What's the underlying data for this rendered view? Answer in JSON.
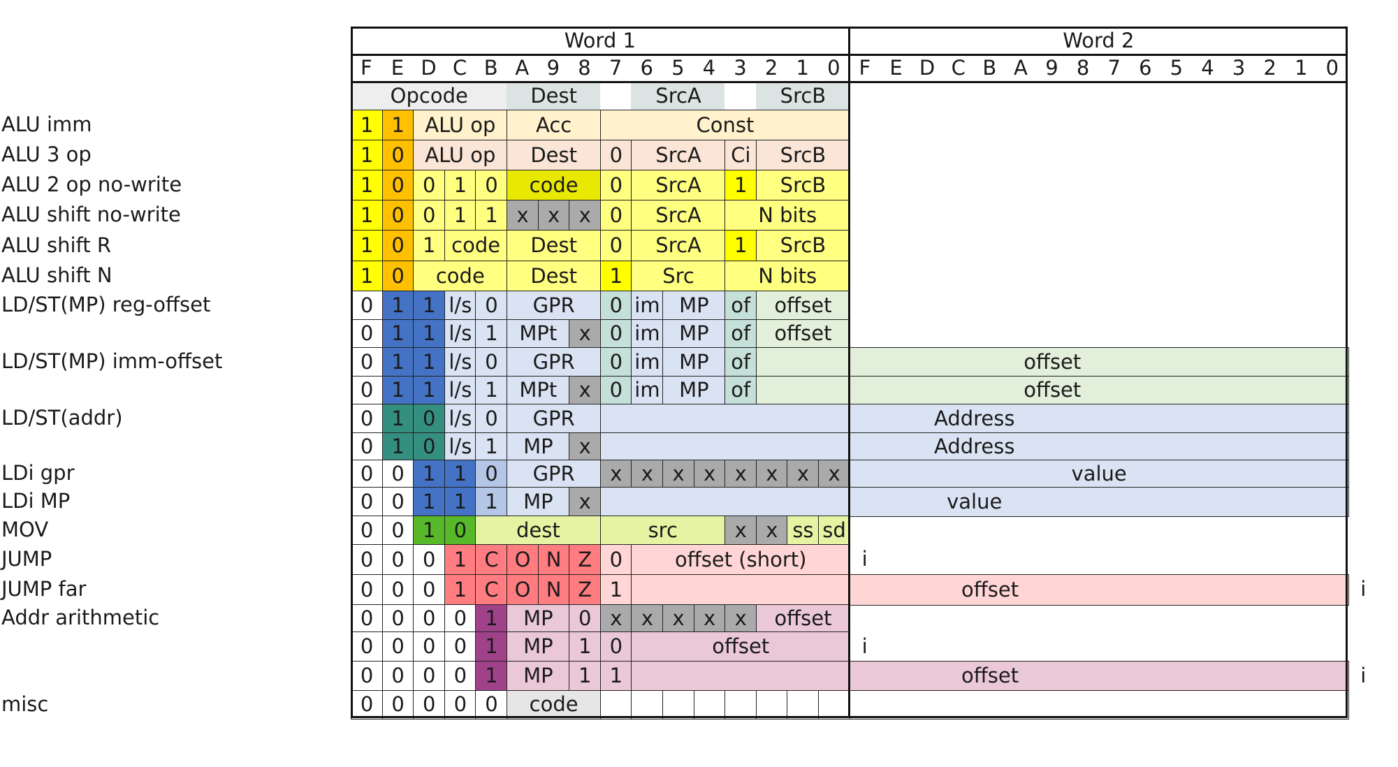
{
  "headers": {
    "word1": "Word 1",
    "word2": "Word 2",
    "bits": [
      "F",
      "E",
      "D",
      "C",
      "B",
      "A",
      "9",
      "8",
      "7",
      "6",
      "5",
      "4",
      "3",
      "2",
      "1",
      "0"
    ]
  },
  "colors": {
    "Y": "#ffff80",
    "Yd": "#ffff00",
    "O": "#ffc000",
    "CR": "#fff2cc",
    "PE": "#fbe5d6",
    "OL": "#e8e800",
    "G": "#aaaaaa",
    "GL": "#e6e6e6",
    "W": "#ffffff",
    "B": "#4472c4",
    "BL": "#dae3f3",
    "BM": "#b4c7e7",
    "T": "#358f80",
    "TL": "#c5dfd9",
    "GRN": "#57b929",
    "LG": "#e2efda",
    "LIM": "#e6f3a3",
    "R": "#ff7c80",
    "RL": "#ffd5d5",
    "P": "#a0428a",
    "PL": "#ebc8d8",
    "HD": "#eeeeee",
    "HDT": "#dbe4e2"
  },
  "rows": [
    {
      "label": "",
      "cells": [
        [
          0,
          5,
          "Opcode",
          "HD"
        ],
        [
          5,
          3,
          "Dest",
          "HDT"
        ],
        [
          8,
          1,
          "",
          "W"
        ],
        [
          9,
          3,
          "SrcA",
          "HDT"
        ],
        [
          12,
          1,
          "",
          "W"
        ],
        [
          13,
          3,
          "SrcB",
          "HDT"
        ]
      ]
    },
    {
      "label": "ALU imm",
      "cells": [
        [
          0,
          1,
          "1",
          "Yd"
        ],
        [
          1,
          1,
          "1",
          "O"
        ],
        [
          2,
          3,
          "ALU op",
          "CR"
        ],
        [
          5,
          3,
          "Acc",
          "CR"
        ],
        [
          8,
          8,
          "Const",
          "CR"
        ]
      ]
    },
    {
      "label": "ALU 3 op",
      "cells": [
        [
          0,
          1,
          "1",
          "Yd"
        ],
        [
          1,
          1,
          "0",
          "O"
        ],
        [
          2,
          3,
          "ALU op",
          "PE"
        ],
        [
          5,
          3,
          "Dest",
          "PE"
        ],
        [
          8,
          1,
          "0",
          "PE"
        ],
        [
          9,
          3,
          "SrcA",
          "PE"
        ],
        [
          12,
          1,
          "Ci",
          "PE"
        ],
        [
          13,
          3,
          "SrcB",
          "PE"
        ]
      ]
    },
    {
      "label": "ALU 2 op no-write",
      "cells": [
        [
          0,
          1,
          "1",
          "Yd"
        ],
        [
          1,
          1,
          "0",
          "O"
        ],
        [
          2,
          1,
          "0",
          "Y"
        ],
        [
          3,
          1,
          "1",
          "Y"
        ],
        [
          4,
          1,
          "0",
          "Y"
        ],
        [
          5,
          3,
          "code",
          "OL"
        ],
        [
          8,
          1,
          "0",
          "Y"
        ],
        [
          9,
          3,
          "SrcA",
          "Y"
        ],
        [
          12,
          1,
          "1",
          "Yd"
        ],
        [
          13,
          3,
          "SrcB",
          "Y"
        ]
      ]
    },
    {
      "label": "ALU shift no-write",
      "cells": [
        [
          0,
          1,
          "1",
          "Yd"
        ],
        [
          1,
          1,
          "0",
          "O"
        ],
        [
          2,
          1,
          "0",
          "Y"
        ],
        [
          3,
          1,
          "1",
          "Y"
        ],
        [
          4,
          1,
          "1",
          "Y"
        ],
        [
          5,
          1,
          "x",
          "G"
        ],
        [
          6,
          1,
          "x",
          "G"
        ],
        [
          7,
          1,
          "x",
          "G"
        ],
        [
          8,
          1,
          "0",
          "Y"
        ],
        [
          9,
          3,
          "SrcA",
          "Y"
        ],
        [
          12,
          4,
          "N bits",
          "Y"
        ]
      ]
    },
    {
      "label": "ALU shift R",
      "cells": [
        [
          0,
          1,
          "1",
          "Yd"
        ],
        [
          1,
          1,
          "0",
          "O"
        ],
        [
          2,
          1,
          "1",
          "Y"
        ],
        [
          3,
          2,
          "code",
          "Y"
        ],
        [
          5,
          3,
          "Dest",
          "Y"
        ],
        [
          8,
          1,
          "0",
          "Y"
        ],
        [
          9,
          3,
          "SrcA",
          "Y"
        ],
        [
          12,
          1,
          "1",
          "Yd"
        ],
        [
          13,
          3,
          "SrcB",
          "Y"
        ]
      ]
    },
    {
      "label": "ALU shift N",
      "cells": [
        [
          0,
          1,
          "1",
          "Yd"
        ],
        [
          1,
          1,
          "0",
          "O"
        ],
        [
          2,
          3,
          "code",
          "Y"
        ],
        [
          5,
          3,
          "Dest",
          "Y"
        ],
        [
          8,
          1,
          "1",
          "Yd"
        ],
        [
          9,
          3,
          "Src",
          "Y"
        ],
        [
          12,
          4,
          "N bits",
          "Y"
        ]
      ]
    },
    {
      "label": "LD/ST(MP) reg-offset",
      "cells": [
        [
          0,
          1,
          "0",
          "W"
        ],
        [
          1,
          1,
          "1",
          "B"
        ],
        [
          2,
          1,
          "1",
          "B"
        ],
        [
          3,
          1,
          "l/s",
          "BL"
        ],
        [
          4,
          1,
          "0",
          "BL"
        ],
        [
          5,
          3,
          "GPR",
          "BL"
        ],
        [
          8,
          1,
          "0",
          "TL"
        ],
        [
          9,
          1,
          "im",
          "BL"
        ],
        [
          10,
          2,
          "MP",
          "BL"
        ],
        [
          12,
          1,
          "of",
          "TL"
        ],
        [
          13,
          3,
          "offset",
          "LG"
        ]
      ]
    },
    {
      "label": "",
      "cells": [
        [
          0,
          1,
          "0",
          "W"
        ],
        [
          1,
          1,
          "1",
          "B"
        ],
        [
          2,
          1,
          "1",
          "B"
        ],
        [
          3,
          1,
          "l/s",
          "BL"
        ],
        [
          4,
          1,
          "1",
          "BL"
        ],
        [
          5,
          2,
          "MPt",
          "BL"
        ],
        [
          7,
          1,
          "x",
          "G"
        ],
        [
          8,
          1,
          "0",
          "TL"
        ],
        [
          9,
          1,
          "im",
          "BL"
        ],
        [
          10,
          2,
          "MP",
          "BL"
        ],
        [
          12,
          1,
          "of",
          "TL"
        ],
        [
          13,
          3,
          "offset",
          "LG"
        ]
      ]
    },
    {
      "label": "LD/ST(MP) imm-offset",
      "cells": [
        [
          0,
          1,
          "0",
          "W"
        ],
        [
          1,
          1,
          "1",
          "B"
        ],
        [
          2,
          1,
          "1",
          "B"
        ],
        [
          3,
          1,
          "l/s",
          "BL"
        ],
        [
          4,
          1,
          "0",
          "BL"
        ],
        [
          5,
          3,
          "GPR",
          "BL"
        ],
        [
          8,
          1,
          "0",
          "TL"
        ],
        [
          9,
          1,
          "im",
          "BL"
        ],
        [
          10,
          2,
          "MP",
          "BL"
        ],
        [
          12,
          1,
          "of",
          "TL"
        ],
        [
          13,
          19,
          "offset",
          "LG"
        ]
      ]
    },
    {
      "label": "",
      "cells": [
        [
          0,
          1,
          "0",
          "W"
        ],
        [
          1,
          1,
          "1",
          "B"
        ],
        [
          2,
          1,
          "1",
          "B"
        ],
        [
          3,
          1,
          "l/s",
          "BL"
        ],
        [
          4,
          1,
          "1",
          "BL"
        ],
        [
          5,
          2,
          "MPt",
          "BL"
        ],
        [
          7,
          1,
          "x",
          "G"
        ],
        [
          8,
          1,
          "0",
          "TL"
        ],
        [
          9,
          1,
          "im",
          "BL"
        ],
        [
          10,
          2,
          "MP",
          "BL"
        ],
        [
          12,
          1,
          "of",
          "TL"
        ],
        [
          13,
          19,
          "offset",
          "LG"
        ]
      ]
    },
    {
      "label": "LD/ST(addr)",
      "cells": [
        [
          0,
          1,
          "0",
          "W"
        ],
        [
          1,
          1,
          "1",
          "T"
        ],
        [
          2,
          1,
          "0",
          "T"
        ],
        [
          3,
          1,
          "l/s",
          "BL"
        ],
        [
          4,
          1,
          "0",
          "BL"
        ],
        [
          5,
          3,
          "GPR",
          "BL"
        ],
        [
          8,
          24,
          "Address",
          "BL"
        ]
      ]
    },
    {
      "label": "",
      "cells": [
        [
          0,
          1,
          "0",
          "W"
        ],
        [
          1,
          1,
          "1",
          "T"
        ],
        [
          2,
          1,
          "0",
          "T"
        ],
        [
          3,
          1,
          "l/s",
          "BL"
        ],
        [
          4,
          1,
          "1",
          "BL"
        ],
        [
          5,
          2,
          "MP",
          "BL"
        ],
        [
          7,
          1,
          "x",
          "G"
        ],
        [
          8,
          24,
          "Address",
          "BL"
        ]
      ]
    },
    {
      "label": "LDi gpr",
      "cells": [
        [
          0,
          1,
          "0",
          "W"
        ],
        [
          1,
          1,
          "0",
          "W"
        ],
        [
          2,
          1,
          "1",
          "B"
        ],
        [
          3,
          1,
          "1",
          "B"
        ],
        [
          4,
          1,
          "0",
          "BM"
        ],
        [
          5,
          3,
          "GPR",
          "BL"
        ],
        [
          8,
          1,
          "x",
          "G"
        ],
        [
          9,
          1,
          "x",
          "G"
        ],
        [
          10,
          1,
          "x",
          "G"
        ],
        [
          11,
          1,
          "x",
          "G"
        ],
        [
          12,
          1,
          "x",
          "G"
        ],
        [
          13,
          1,
          "x",
          "G"
        ],
        [
          14,
          1,
          "x",
          "G"
        ],
        [
          15,
          1,
          "x",
          "G"
        ],
        [
          16,
          16,
          "value",
          "BL"
        ]
      ]
    },
    {
      "label": "LDi MP",
      "cells": [
        [
          0,
          1,
          "0",
          "W"
        ],
        [
          1,
          1,
          "0",
          "W"
        ],
        [
          2,
          1,
          "1",
          "B"
        ],
        [
          3,
          1,
          "1",
          "B"
        ],
        [
          4,
          1,
          "1",
          "BM"
        ],
        [
          5,
          2,
          "MP",
          "BL"
        ],
        [
          7,
          1,
          "x",
          "G"
        ],
        [
          8,
          24,
          "value",
          "BL"
        ]
      ]
    },
    {
      "label": "MOV",
      "cells": [
        [
          0,
          1,
          "0",
          "W"
        ],
        [
          1,
          1,
          "0",
          "W"
        ],
        [
          2,
          1,
          "1",
          "GRN"
        ],
        [
          3,
          1,
          "0",
          "GRN"
        ],
        [
          4,
          4,
          "dest",
          "LIM"
        ],
        [
          8,
          4,
          "src",
          "LIM"
        ],
        [
          12,
          1,
          "x",
          "G"
        ],
        [
          13,
          1,
          "x",
          "G"
        ],
        [
          14,
          1,
          "ss",
          "LIM"
        ],
        [
          15,
          1,
          "sd",
          "LIM"
        ]
      ]
    },
    {
      "label": "JUMP",
      "cells": [
        [
          0,
          1,
          "0",
          "W"
        ],
        [
          1,
          1,
          "0",
          "W"
        ],
        [
          2,
          1,
          "0",
          "W"
        ],
        [
          3,
          1,
          "1",
          "R"
        ],
        [
          4,
          1,
          "C",
          "R"
        ],
        [
          5,
          1,
          "O",
          "R"
        ],
        [
          6,
          1,
          "N",
          "R"
        ],
        [
          7,
          1,
          "Z",
          "R"
        ],
        [
          8,
          1,
          "0",
          "RL"
        ],
        [
          9,
          7,
          "offset (short)",
          "RL"
        ]
      ],
      "imark": "i",
      "imark_after": "short"
    },
    {
      "label": "JUMP far",
      "cells": [
        [
          0,
          1,
          "0",
          "W"
        ],
        [
          1,
          1,
          "0",
          "W"
        ],
        [
          2,
          1,
          "0",
          "W"
        ],
        [
          3,
          1,
          "1",
          "R"
        ],
        [
          4,
          1,
          "C",
          "R"
        ],
        [
          5,
          1,
          "O",
          "R"
        ],
        [
          6,
          1,
          "N",
          "R"
        ],
        [
          7,
          1,
          "Z",
          "R"
        ],
        [
          8,
          1,
          "1",
          "RL"
        ],
        [
          9,
          23,
          "offset",
          "RL"
        ]
      ],
      "imark": "i",
      "imark_after": "long"
    },
    {
      "label": "Addr arithmetic",
      "cells": [
        [
          0,
          1,
          "0",
          "W"
        ],
        [
          1,
          1,
          "0",
          "W"
        ],
        [
          2,
          1,
          "0",
          "W"
        ],
        [
          3,
          1,
          "0",
          "W"
        ],
        [
          4,
          1,
          "1",
          "P"
        ],
        [
          5,
          2,
          "MP",
          "PL"
        ],
        [
          7,
          1,
          "0",
          "PL"
        ],
        [
          8,
          1,
          "x",
          "G"
        ],
        [
          9,
          1,
          "x",
          "G"
        ],
        [
          10,
          1,
          "x",
          "G"
        ],
        [
          11,
          1,
          "x",
          "G"
        ],
        [
          12,
          1,
          "x",
          "G"
        ],
        [
          13,
          3,
          "offset",
          "PL"
        ]
      ]
    },
    {
      "label": "",
      "cells": [
        [
          0,
          1,
          "0",
          "W"
        ],
        [
          1,
          1,
          "0",
          "W"
        ],
        [
          2,
          1,
          "0",
          "W"
        ],
        [
          3,
          1,
          "0",
          "W"
        ],
        [
          4,
          1,
          "1",
          "P"
        ],
        [
          5,
          2,
          "MP",
          "PL"
        ],
        [
          7,
          1,
          "1",
          "PL"
        ],
        [
          8,
          1,
          "0",
          "PL"
        ],
        [
          9,
          7,
          "offset",
          "PL"
        ]
      ],
      "imark": "i",
      "imark_after": "short"
    },
    {
      "label": "",
      "cells": [
        [
          0,
          1,
          "0",
          "W"
        ],
        [
          1,
          1,
          "0",
          "W"
        ],
        [
          2,
          1,
          "0",
          "W"
        ],
        [
          3,
          1,
          "0",
          "W"
        ],
        [
          4,
          1,
          "1",
          "P"
        ],
        [
          5,
          2,
          "MP",
          "PL"
        ],
        [
          7,
          1,
          "1",
          "PL"
        ],
        [
          8,
          1,
          "1",
          "PL"
        ],
        [
          9,
          23,
          "offset",
          "PL"
        ]
      ],
      "imark": "i",
      "imark_after": "long"
    },
    {
      "label": "misc",
      "cells": [
        [
          0,
          1,
          "0",
          "W"
        ],
        [
          1,
          1,
          "0",
          "W"
        ],
        [
          2,
          1,
          "0",
          "W"
        ],
        [
          3,
          1,
          "0",
          "W"
        ],
        [
          4,
          1,
          "0",
          "W"
        ],
        [
          5,
          3,
          "code",
          "GL"
        ],
        [
          8,
          1,
          "",
          "W"
        ],
        [
          9,
          1,
          "",
          "W"
        ],
        [
          10,
          1,
          "",
          "W"
        ],
        [
          11,
          1,
          "",
          "W"
        ],
        [
          12,
          1,
          "",
          "W"
        ],
        [
          13,
          1,
          "",
          "W"
        ],
        [
          14,
          1,
          "",
          "W"
        ],
        [
          15,
          1,
          "",
          "W"
        ],
        [
          16,
          16,
          "",
          "W"
        ]
      ]
    }
  ]
}
